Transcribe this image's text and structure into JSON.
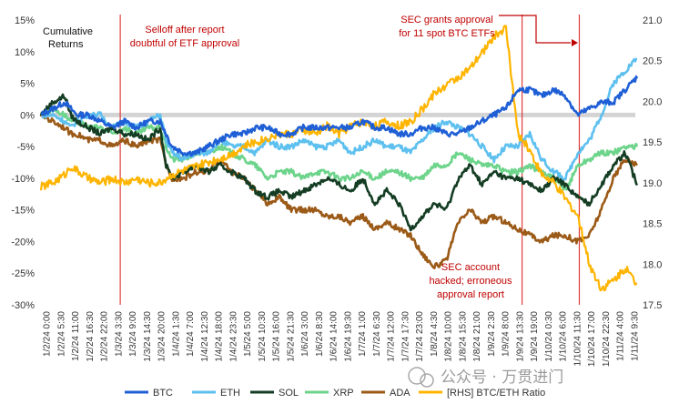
{
  "chart_data": {
    "type": "line",
    "corner_label_line1": "Cumulative",
    "corner_label_line2": "Returns",
    "y_left": {
      "ticks": [
        "15%",
        "10%",
        "5%",
        "0%",
        "-5%",
        "-10%",
        "-15%",
        "-20%",
        "-25%",
        "-30%"
      ],
      "range": [
        -30,
        15
      ]
    },
    "y_right": {
      "ticks": [
        "21.0",
        "20.5",
        "20.0",
        "19.5",
        "19.0",
        "18.5",
        "18.0",
        "17.5"
      ],
      "range": [
        17.5,
        21.0
      ]
    },
    "x_ticks": [
      "1/2/24 0:00",
      "1/2/24 5:30",
      "1/2/24 11:00",
      "1/2/24 16:30",
      "1/2/24 22:00",
      "1/3/24 3:30",
      "1/3/24 9:00",
      "1/3/24 14:30",
      "1/3/24 20:00",
      "1/4/24 1:30",
      "1/4/24 7:00",
      "1/4/24 12:30",
      "1/4/24 18:00",
      "1/4/24 23:30",
      "1/5/24 5:00",
      "1/5/24 10:30",
      "1/5/24 16:00",
      "1/5/24 21:30",
      "1/6/24 3:00",
      "1/6/24 8:30",
      "1/6/24 14:00",
      "1/6/24 19:30",
      "1/7/24 1:00",
      "1/7/24 6:30",
      "1/7/24 12:00",
      "1/7/24 17:30",
      "1/7/24 23:00",
      "1/8/24 4:30",
      "1/8/24 10:00",
      "1/8/24 15:30",
      "1/8/24 21:00",
      "1/9/24 2:30",
      "1/9/24 8:00",
      "1/9/24 13:30",
      "1/9/24 19:00",
      "1/10/24 0:30",
      "1/10/24 6:00",
      "1/10/24 11:30",
      "1/10/24 17:00",
      "1/10/24 22:30",
      "1/11/24 4:00",
      "1/11/24 9:30"
    ],
    "annotations": {
      "selloff": [
        "Selloff after report",
        "doubtful of ETF approval"
      ],
      "sec_grants": [
        "SEC grants approval",
        "for 11 spot BTC ETFs"
      ],
      "sec_hacked": [
        "SEC account",
        "hacked; erroneous",
        "approval report"
      ]
    },
    "series": [
      {
        "name": "BTC",
        "color": "#1f5fd6",
        "axis": "left",
        "x": [
          0,
          2,
          4,
          5,
          6,
          8,
          10,
          12,
          14,
          16,
          18,
          20,
          21,
          22,
          24,
          26,
          28,
          30,
          32,
          34,
          36,
          38,
          40,
          42,
          44,
          46,
          48,
          50,
          52,
          54,
          56,
          58,
          60,
          62,
          64,
          66,
          68,
          70,
          72,
          74,
          76,
          78,
          80,
          82,
          84,
          86,
          88,
          90,
          92,
          94,
          96,
          98,
          100
        ],
        "values": [
          0,
          1,
          2,
          1,
          0,
          0,
          -1,
          -2,
          -1,
          -2,
          -1,
          -1,
          -3,
          -5,
          -6,
          -6,
          -5,
          -4,
          -3,
          -3,
          -2,
          -2,
          -3,
          -3,
          -2,
          -2,
          -2,
          -2,
          -2,
          -1,
          -2,
          -2,
          -3,
          -3,
          -2,
          -2,
          -3,
          -3,
          -2,
          -1,
          0,
          1,
          4,
          4,
          3,
          4,
          3,
          0,
          1,
          2,
          2,
          4,
          6
        ]
      },
      {
        "name": "ETH",
        "color": "#5ec0ef",
        "axis": "left",
        "x": [
          0,
          2,
          4,
          5,
          6,
          8,
          10,
          12,
          14,
          16,
          18,
          20,
          21,
          22,
          24,
          26,
          28,
          30,
          32,
          34,
          36,
          38,
          40,
          42,
          44,
          46,
          48,
          50,
          52,
          54,
          56,
          58,
          60,
          62,
          64,
          66,
          68,
          70,
          72,
          74,
          76,
          78,
          80,
          82,
          84,
          86,
          88,
          90,
          92,
          94,
          96,
          98,
          100
        ],
        "values": [
          0,
          0,
          -1,
          -2,
          -1,
          0,
          0,
          -2,
          -1,
          -2,
          -1,
          0,
          -4,
          -6,
          -7,
          -6,
          -6,
          -4,
          -5,
          -5,
          -6,
          -4,
          -5,
          -5,
          -4,
          -5,
          -5,
          -4,
          -6,
          -5,
          -4,
          -5,
          -5,
          -6,
          -4,
          -2,
          -1,
          -2,
          -3,
          -5,
          -7,
          -5,
          -5,
          -3,
          -7,
          -9,
          -10,
          -6,
          -4,
          0,
          5,
          7,
          9
        ]
      },
      {
        "name": "SOL",
        "color": "#143d23",
        "axis": "left",
        "x": [
          0,
          2,
          4,
          5,
          6,
          8,
          10,
          12,
          14,
          16,
          18,
          20,
          21,
          22,
          24,
          26,
          28,
          30,
          32,
          34,
          36,
          38,
          40,
          42,
          44,
          46,
          48,
          50,
          52,
          54,
          56,
          58,
          60,
          62,
          64,
          66,
          68,
          70,
          72,
          74,
          76,
          78,
          80,
          82,
          84,
          86,
          88,
          90,
          92,
          94,
          96,
          98,
          100
        ],
        "values": [
          0,
          2,
          3,
          0,
          -1,
          -2,
          -3,
          -2,
          -3,
          -3,
          -4,
          -2,
          -8,
          -10,
          -9,
          -8,
          -9,
          -8,
          -9,
          -10,
          -12,
          -13,
          -12,
          -13,
          -12,
          -11,
          -10,
          -11,
          -12,
          -10,
          -14,
          -12,
          -14,
          -18,
          -16,
          -14,
          -15,
          -10,
          -8,
          -11,
          -9,
          -10,
          -10,
          -11,
          -12,
          -10,
          -11,
          -13,
          -14,
          -11,
          -8,
          -6,
          -11
        ]
      },
      {
        "name": "XRP",
        "color": "#6dd48b",
        "axis": "left",
        "x": [
          0,
          2,
          4,
          5,
          6,
          8,
          10,
          12,
          14,
          16,
          18,
          20,
          21,
          22,
          24,
          26,
          28,
          30,
          32,
          34,
          36,
          38,
          40,
          42,
          44,
          46,
          48,
          50,
          52,
          54,
          56,
          58,
          60,
          62,
          64,
          66,
          68,
          70,
          72,
          74,
          76,
          78,
          80,
          82,
          84,
          86,
          88,
          90,
          92,
          94,
          96,
          98,
          100
        ],
        "values": [
          0,
          1,
          0,
          -1,
          -1,
          -2,
          -2,
          -3,
          -2,
          -3,
          -2,
          -2,
          -5,
          -7,
          -7,
          -6,
          -6,
          -5,
          -6,
          -7,
          -8,
          -10,
          -9,
          -9,
          -10,
          -9,
          -9,
          -10,
          -10,
          -9,
          -10,
          -9,
          -9,
          -10,
          -10,
          -8,
          -8,
          -6,
          -7,
          -8,
          -8,
          -9,
          -9,
          -8,
          -9,
          -10,
          -12,
          -8,
          -7,
          -6,
          -6,
          -5,
          -5
        ]
      },
      {
        "name": "ADA",
        "color": "#9b5a17",
        "axis": "left",
        "x": [
          0,
          2,
          4,
          5,
          6,
          8,
          10,
          12,
          14,
          16,
          18,
          20,
          21,
          22,
          24,
          26,
          28,
          30,
          32,
          34,
          36,
          38,
          40,
          42,
          44,
          46,
          48,
          50,
          52,
          54,
          56,
          58,
          60,
          62,
          64,
          66,
          68,
          70,
          72,
          74,
          76,
          78,
          80,
          82,
          84,
          86,
          88,
          90,
          92,
          94,
          96,
          98,
          100
        ],
        "values": [
          0,
          -1,
          -2,
          -3,
          -3,
          -4,
          -4,
          -5,
          -4,
          -5,
          -4,
          -4,
          -8,
          -10,
          -10,
          -9,
          -9,
          -7,
          -9,
          -10,
          -12,
          -14,
          -13,
          -15,
          -15,
          -15,
          -16,
          -16,
          -17,
          -16,
          -18,
          -17,
          -18,
          -19,
          -22,
          -24,
          -23,
          -17,
          -15,
          -17,
          -16,
          -17,
          -18,
          -19,
          -20,
          -19,
          -19,
          -20,
          -19,
          -15,
          -10,
          -7,
          -8
        ]
      },
      {
        "name": "[RHS] BTC/ETH Ratio",
        "color": "#ffb400",
        "axis": "right",
        "x": [
          0,
          2,
          4,
          5,
          6,
          8,
          10,
          12,
          14,
          16,
          18,
          20,
          21,
          22,
          24,
          26,
          28,
          30,
          32,
          34,
          36,
          38,
          40,
          42,
          44,
          46,
          48,
          50,
          52,
          54,
          56,
          58,
          60,
          62,
          64,
          66,
          68,
          70,
          72,
          74,
          76,
          78,
          80,
          82,
          84,
          86,
          88,
          90,
          92,
          94,
          96,
          98,
          100
        ],
        "values": [
          18.95,
          19.0,
          19.1,
          19.2,
          19.15,
          19.05,
          19.0,
          19.05,
          19.0,
          19.05,
          19.0,
          19.0,
          19.05,
          19.1,
          19.15,
          19.2,
          19.25,
          19.3,
          19.35,
          19.45,
          19.5,
          19.55,
          19.6,
          19.6,
          19.65,
          19.6,
          19.7,
          19.6,
          19.7,
          19.75,
          19.7,
          19.75,
          19.7,
          19.75,
          19.9,
          20.1,
          20.2,
          20.3,
          20.4,
          20.6,
          20.8,
          20.9,
          19.6,
          19.4,
          19.1,
          19.0,
          18.8,
          18.6,
          18.0,
          17.7,
          17.8,
          17.95,
          17.75
        ]
      }
    ]
  }
}
